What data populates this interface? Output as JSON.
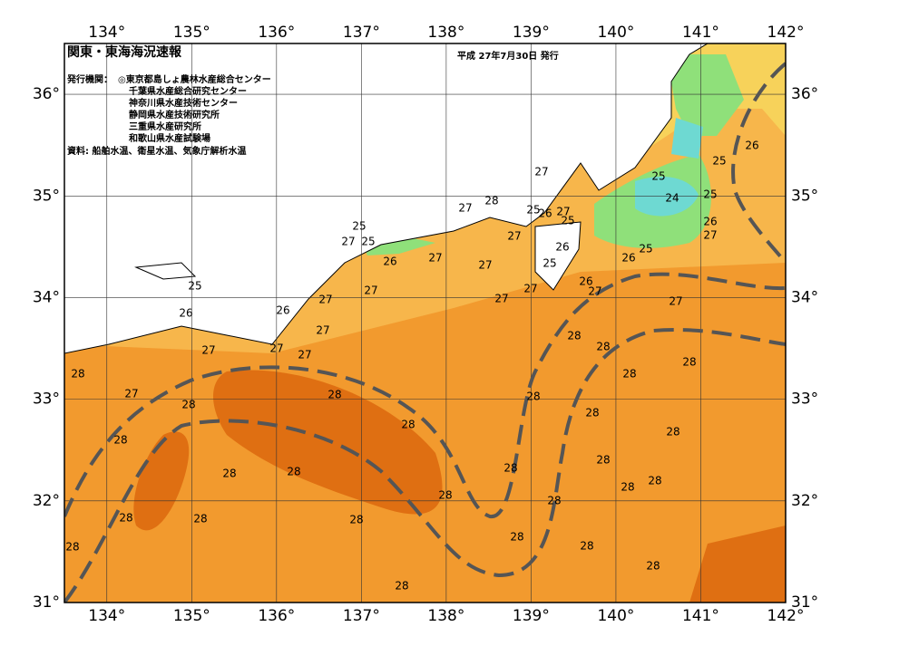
{
  "header": {
    "title": "関東・東海海況速報",
    "issue_date": "平成 27年7月30日 発行",
    "issuer_label": "発行機関：",
    "issuers": [
      "◎東京都島しょ農林水産総合センター",
      "千葉県水産総合研究センター",
      "神奈川県水産技術センター",
      "静岡県水産技術研究所",
      "三重県水産研究所",
      "和歌山県水産試験場"
    ],
    "source": "資料: 船舶水温、衛星水温、気象庁解析水温"
  },
  "map": {
    "lonlim": [
      133.5,
      142
    ],
    "latlim": [
      31,
      36.5
    ],
    "lonticks": [
      {
        "value": 134,
        "label": "134°"
      },
      {
        "value": 135,
        "label": "135°"
      },
      {
        "value": 136,
        "label": "136°"
      },
      {
        "value": 137,
        "label": "137°"
      },
      {
        "value": 138,
        "label": "138°"
      },
      {
        "value": 139,
        "label": "139°"
      },
      {
        "value": 140,
        "label": "140°"
      },
      {
        "value": 141,
        "label": "141°"
      },
      {
        "value": 142,
        "label": "142°"
      }
    ],
    "latticks": [
      {
        "value": 31,
        "label": "31°"
      },
      {
        "value": 32,
        "label": "32°"
      },
      {
        "value": 33,
        "label": "33°"
      },
      {
        "value": 34,
        "label": "34°"
      },
      {
        "value": 35,
        "label": "35°"
      },
      {
        "value": 36,
        "label": "36°"
      }
    ],
    "contour_labels": [
      25,
      27,
      25,
      26,
      27,
      27,
      28,
      27,
      25,
      26,
      27,
      25,
      27,
      27,
      26,
      25,
      27,
      27,
      26,
      27,
      27,
      27,
      26,
      27,
      27,
      27,
      27,
      25,
      26,
      28,
      27,
      28,
      28,
      28,
      28,
      28,
      28,
      28,
      28,
      28,
      28,
      28,
      28,
      28,
      28,
      28,
      28,
      28,
      28,
      28,
      28,
      28,
      28,
      28,
      28,
      28,
      28,
      28,
      27,
      26,
      25,
      26,
      27,
      25,
      24,
      25,
      25,
      26
    ]
  }
}
